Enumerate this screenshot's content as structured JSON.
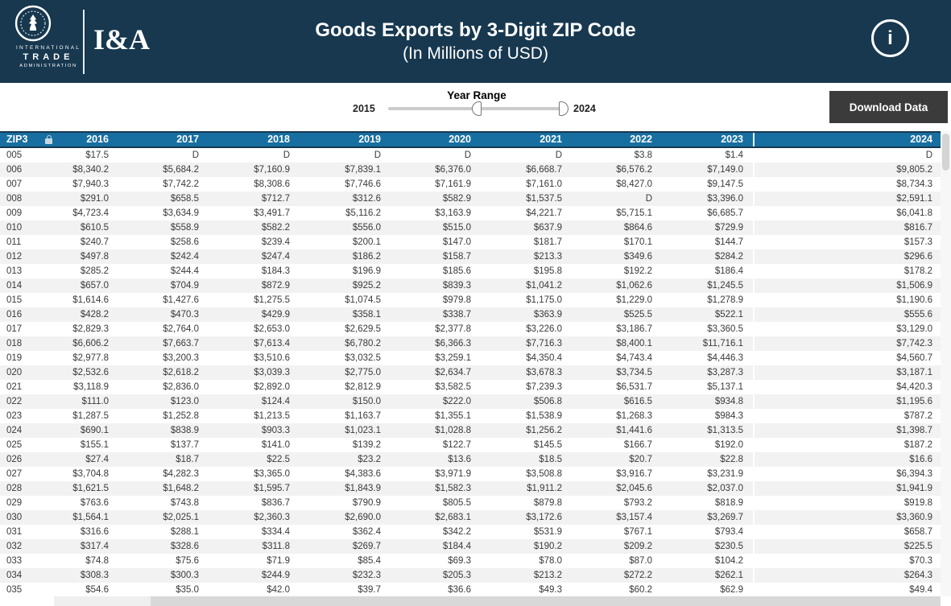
{
  "banner": {
    "logo": {
      "org_lines": {
        "line1": "INTERNATIONAL",
        "line2": "TRADE",
        "line3": "ADMINISTRATION"
      },
      "unit": "I&A"
    },
    "title": "Goods Exports by 3-Digit ZIP Code",
    "subtitle": "(In Millions of USD)",
    "info_icon_glyph": "i"
  },
  "controls": {
    "year_range": {
      "label": "Year Range",
      "min_label": "2015",
      "max_label": "2024"
    },
    "download_button_label": "Download Data"
  },
  "colors": {
    "banner_bg": "#17384F",
    "table_header_bg": "#176FA1",
    "download_button_bg": "#3B3B3B",
    "row_alt_bg": "#F2F2F2"
  },
  "table": {
    "zip_header": "ZIP3",
    "year_headers": [
      "2016",
      "2017",
      "2018",
      "2019",
      "2020",
      "2021",
      "2022",
      "2023",
      "2024"
    ],
    "rows": [
      {
        "zip": "005",
        "values": [
          "$17.5",
          "D",
          "D",
          "D",
          "D",
          "D",
          "$3.8",
          "$1.4",
          "D"
        ]
      },
      {
        "zip": "006",
        "values": [
          "$8,340.2",
          "$5,684.2",
          "$7,160.9",
          "$7,839.1",
          "$6,376.0",
          "$6,668.7",
          "$6,576.2",
          "$7,149.0",
          "$9,805.2"
        ]
      },
      {
        "zip": "007",
        "values": [
          "$7,940.3",
          "$7,742.2",
          "$8,308.6",
          "$7,746.6",
          "$7,161.9",
          "$7,161.0",
          "$8,427.0",
          "$9,147.5",
          "$8,734.3"
        ]
      },
      {
        "zip": "008",
        "values": [
          "$291.0",
          "$658.5",
          "$712.7",
          "$312.6",
          "$582.9",
          "$1,537.5",
          "D",
          "$3,396.0",
          "$2,591.1"
        ]
      },
      {
        "zip": "009",
        "values": [
          "$4,723.4",
          "$3,634.9",
          "$3,491.7",
          "$5,116.2",
          "$3,163.9",
          "$4,221.7",
          "$5,715.1",
          "$6,685.7",
          "$6,041.8"
        ]
      },
      {
        "zip": "010",
        "values": [
          "$610.5",
          "$558.9",
          "$582.2",
          "$556.0",
          "$515.0",
          "$637.9",
          "$864.6",
          "$729.9",
          "$816.7"
        ]
      },
      {
        "zip": "011",
        "values": [
          "$240.7",
          "$258.6",
          "$239.4",
          "$200.1",
          "$147.0",
          "$181.7",
          "$170.1",
          "$144.7",
          "$157.3"
        ]
      },
      {
        "zip": "012",
        "values": [
          "$497.8",
          "$242.4",
          "$247.4",
          "$186.2",
          "$158.7",
          "$213.3",
          "$349.6",
          "$284.2",
          "$296.6"
        ]
      },
      {
        "zip": "013",
        "values": [
          "$285.2",
          "$244.4",
          "$184.3",
          "$196.9",
          "$185.6",
          "$195.8",
          "$192.2",
          "$186.4",
          "$178.2"
        ]
      },
      {
        "zip": "014",
        "values": [
          "$657.0",
          "$704.9",
          "$872.9",
          "$925.2",
          "$839.3",
          "$1,041.2",
          "$1,062.6",
          "$1,245.5",
          "$1,506.9"
        ]
      },
      {
        "zip": "015",
        "values": [
          "$1,614.6",
          "$1,427.6",
          "$1,275.5",
          "$1,074.5",
          "$979.8",
          "$1,175.0",
          "$1,229.0",
          "$1,278.9",
          "$1,190.6"
        ]
      },
      {
        "zip": "016",
        "values": [
          "$428.2",
          "$470.3",
          "$429.9",
          "$358.1",
          "$338.7",
          "$363.9",
          "$525.5",
          "$522.1",
          "$555.6"
        ]
      },
      {
        "zip": "017",
        "values": [
          "$2,829.3",
          "$2,764.0",
          "$2,653.0",
          "$2,629.5",
          "$2,377.8",
          "$3,226.0",
          "$3,186.7",
          "$3,360.5",
          "$3,129.0"
        ]
      },
      {
        "zip": "018",
        "values": [
          "$6,606.2",
          "$7,663.7",
          "$7,613.4",
          "$6,780.2",
          "$6,366.3",
          "$7,716.3",
          "$8,400.1",
          "$11,716.1",
          "$7,742.3"
        ]
      },
      {
        "zip": "019",
        "values": [
          "$2,977.8",
          "$3,200.3",
          "$3,510.6",
          "$3,032.5",
          "$3,259.1",
          "$4,350.4",
          "$4,743.4",
          "$4,446.3",
          "$4,560.7"
        ]
      },
      {
        "zip": "020",
        "values": [
          "$2,532.6",
          "$2,618.2",
          "$3,039.3",
          "$2,775.0",
          "$2,634.7",
          "$3,678.3",
          "$3,734.5",
          "$3,287.3",
          "$3,187.1"
        ]
      },
      {
        "zip": "021",
        "values": [
          "$3,118.9",
          "$2,836.0",
          "$2,892.0",
          "$2,812.9",
          "$3,582.5",
          "$7,239.3",
          "$6,531.7",
          "$5,137.1",
          "$4,420.3"
        ]
      },
      {
        "zip": "022",
        "values": [
          "$111.0",
          "$123.0",
          "$124.4",
          "$150.0",
          "$222.0",
          "$506.8",
          "$616.5",
          "$934.8",
          "$1,195.6"
        ]
      },
      {
        "zip": "023",
        "values": [
          "$1,287.5",
          "$1,252.8",
          "$1,213.5",
          "$1,163.7",
          "$1,355.1",
          "$1,538.9",
          "$1,268.3",
          "$984.3",
          "$787.2"
        ]
      },
      {
        "zip": "024",
        "values": [
          "$690.1",
          "$838.9",
          "$903.3",
          "$1,023.1",
          "$1,028.8",
          "$1,256.2",
          "$1,441.6",
          "$1,313.5",
          "$1,398.7"
        ]
      },
      {
        "zip": "025",
        "values": [
          "$155.1",
          "$137.7",
          "$141.0",
          "$139.2",
          "$122.7",
          "$145.5",
          "$166.7",
          "$192.0",
          "$187.2"
        ]
      },
      {
        "zip": "026",
        "values": [
          "$27.4",
          "$18.7",
          "$22.5",
          "$23.2",
          "$13.6",
          "$18.5",
          "$20.7",
          "$22.8",
          "$16.6"
        ]
      },
      {
        "zip": "027",
        "values": [
          "$3,704.8",
          "$4,282.3",
          "$3,365.0",
          "$4,383.6",
          "$3,971.9",
          "$3,508.8",
          "$3,916.7",
          "$3,231.9",
          "$6,394.3"
        ]
      },
      {
        "zip": "028",
        "values": [
          "$1,621.5",
          "$1,648.2",
          "$1,595.7",
          "$1,843.9",
          "$1,582.3",
          "$1,911.2",
          "$2,045.6",
          "$2,037.0",
          "$1,941.9"
        ]
      },
      {
        "zip": "029",
        "values": [
          "$763.6",
          "$743.8",
          "$836.7",
          "$790.9",
          "$805.5",
          "$879.8",
          "$793.2",
          "$818.9",
          "$919.8"
        ]
      },
      {
        "zip": "030",
        "values": [
          "$1,564.1",
          "$2,025.1",
          "$2,360.3",
          "$2,690.0",
          "$2,683.1",
          "$3,172.6",
          "$3,157.4",
          "$3,269.7",
          "$3,360.9"
        ]
      },
      {
        "zip": "031",
        "values": [
          "$316.6",
          "$288.1",
          "$334.4",
          "$362.4",
          "$342.2",
          "$531.9",
          "$767.1",
          "$793.4",
          "$658.7"
        ]
      },
      {
        "zip": "032",
        "values": [
          "$317.4",
          "$328.6",
          "$311.8",
          "$269.7",
          "$184.4",
          "$190.2",
          "$209.2",
          "$230.5",
          "$225.5"
        ]
      },
      {
        "zip": "033",
        "values": [
          "$74.8",
          "$75.6",
          "$71.9",
          "$85.4",
          "$69.3",
          "$78.0",
          "$87.0",
          "$104.2",
          "$70.3"
        ]
      },
      {
        "zip": "034",
        "values": [
          "$308.3",
          "$300.3",
          "$244.9",
          "$232.3",
          "$205.3",
          "$213.2",
          "$272.2",
          "$262.1",
          "$264.3"
        ]
      },
      {
        "zip": "035",
        "values": [
          "$54.6",
          "$35.0",
          "$42.0",
          "$39.7",
          "$36.6",
          "$49.3",
          "$60.2",
          "$62.9",
          "$49.4"
        ]
      }
    ]
  }
}
